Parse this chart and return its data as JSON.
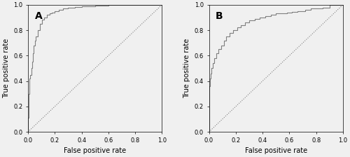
{
  "background_color": "#f0f0f0",
  "figure_background": "#f0f0f0",
  "line_color": "#808080",
  "diagonal_color": "#808080",
  "diagonal_style": "dotted",
  "panel_A_label": "A",
  "panel_B_label": "B",
  "xlabel": "False positive rate",
  "ylabel": "True positive rate",
  "xticks": [
    0.0,
    0.2,
    0.4,
    0.6,
    0.8,
    1.0
  ],
  "yticks": [
    0.0,
    0.2,
    0.4,
    0.6,
    0.8,
    1.0
  ],
  "tick_label_fontsize": 6,
  "axis_label_fontsize": 7,
  "panel_label_fontsize": 10,
  "line_width": 0.8,
  "roc_A_fpr": [
    0.0,
    0.0,
    0.003,
    0.003,
    0.006,
    0.006,
    0.009,
    0.009,
    0.012,
    0.012,
    0.018,
    0.018,
    0.024,
    0.024,
    0.03,
    0.03,
    0.036,
    0.036,
    0.042,
    0.042,
    0.05,
    0.05,
    0.06,
    0.06,
    0.075,
    0.075,
    0.09,
    0.09,
    0.105,
    0.105,
    0.12,
    0.12,
    0.14,
    0.14,
    0.16,
    0.16,
    0.18,
    0.18,
    0.2,
    0.2,
    0.23,
    0.23,
    0.26,
    0.26,
    0.3,
    0.3,
    0.35,
    0.35,
    0.4,
    0.4,
    0.45,
    0.45,
    0.5,
    0.5,
    0.55,
    0.55,
    0.6,
    0.6,
    0.7,
    0.7,
    0.8,
    0.8,
    0.9,
    0.9,
    1.0
  ],
  "roc_A_tpr": [
    0.0,
    0.11,
    0.11,
    0.25,
    0.25,
    0.3,
    0.3,
    0.38,
    0.38,
    0.42,
    0.42,
    0.45,
    0.45,
    0.5,
    0.5,
    0.55,
    0.55,
    0.62,
    0.62,
    0.68,
    0.68,
    0.72,
    0.72,
    0.75,
    0.75,
    0.8,
    0.8,
    0.85,
    0.85,
    0.88,
    0.88,
    0.9,
    0.9,
    0.92,
    0.92,
    0.93,
    0.93,
    0.94,
    0.94,
    0.95,
    0.95,
    0.96,
    0.96,
    0.97,
    0.97,
    0.975,
    0.975,
    0.98,
    0.98,
    0.985,
    0.985,
    0.99,
    0.99,
    0.993,
    0.993,
    0.995,
    0.995,
    0.997,
    0.997,
    0.998,
    0.998,
    0.999,
    0.999,
    1.0,
    1.0
  ],
  "roc_B_fpr": [
    0.0,
    0.0,
    0.005,
    0.005,
    0.01,
    0.01,
    0.015,
    0.015,
    0.02,
    0.02,
    0.03,
    0.03,
    0.04,
    0.04,
    0.055,
    0.055,
    0.07,
    0.07,
    0.09,
    0.09,
    0.11,
    0.11,
    0.13,
    0.13,
    0.155,
    0.155,
    0.18,
    0.18,
    0.21,
    0.21,
    0.24,
    0.24,
    0.27,
    0.27,
    0.3,
    0.3,
    0.34,
    0.34,
    0.38,
    0.38,
    0.42,
    0.42,
    0.46,
    0.46,
    0.5,
    0.5,
    0.54,
    0.54,
    0.58,
    0.58,
    0.62,
    0.62,
    0.66,
    0.66,
    0.72,
    0.72,
    0.76,
    0.76,
    0.85,
    0.85,
    0.9,
    0.9,
    1.0
  ],
  "roc_B_tpr": [
    0.0,
    0.27,
    0.27,
    0.36,
    0.36,
    0.42,
    0.42,
    0.46,
    0.46,
    0.5,
    0.5,
    0.54,
    0.54,
    0.58,
    0.58,
    0.62,
    0.62,
    0.65,
    0.65,
    0.68,
    0.68,
    0.72,
    0.72,
    0.75,
    0.75,
    0.78,
    0.78,
    0.8,
    0.8,
    0.82,
    0.82,
    0.84,
    0.84,
    0.86,
    0.86,
    0.875,
    0.875,
    0.89,
    0.89,
    0.9,
    0.9,
    0.91,
    0.91,
    0.92,
    0.92,
    0.93,
    0.93,
    0.935,
    0.935,
    0.94,
    0.94,
    0.945,
    0.945,
    0.95,
    0.95,
    0.96,
    0.96,
    0.97,
    0.97,
    0.975,
    0.975,
    1.0,
    1.0
  ]
}
